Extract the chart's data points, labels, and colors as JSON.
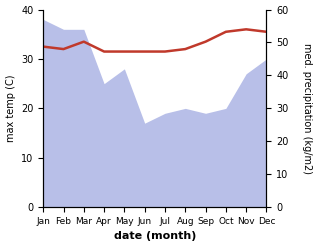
{
  "months": [
    "Jan",
    "Feb",
    "Mar",
    "Apr",
    "May",
    "Jun",
    "Jul",
    "Aug",
    "Sep",
    "Oct",
    "Nov",
    "Dec"
  ],
  "month_indices": [
    0,
    1,
    2,
    3,
    4,
    5,
    6,
    7,
    8,
    9,
    10,
    11
  ],
  "temp_max": [
    32.5,
    32.0,
    33.5,
    31.5,
    31.5,
    31.5,
    31.5,
    32.0,
    33.5,
    35.5,
    36.0,
    35.5
  ],
  "precip_left_axis": [
    38.0,
    36.0,
    36.0,
    25.0,
    28.0,
    17.0,
    19.0,
    20.0,
    19.0,
    20.0,
    27.0,
    30.0
  ],
  "temp_ylim": [
    0,
    40
  ],
  "precip_ylim": [
    0,
    60
  ],
  "left_ylim": [
    0,
    40
  ],
  "temp_color": "#c0392b",
  "precip_fill_color": "#b8bfe8",
  "precip_fill_alpha": 1.0,
  "xlabel": "date (month)",
  "ylabel_left": "max temp (C)",
  "ylabel_right": "med. precipitation (kg/m2)",
  "temp_linewidth": 1.8,
  "left_yticks": [
    0,
    10,
    20,
    30,
    40
  ],
  "right_yticks": [
    0,
    10,
    20,
    30,
    40,
    50,
    60
  ]
}
